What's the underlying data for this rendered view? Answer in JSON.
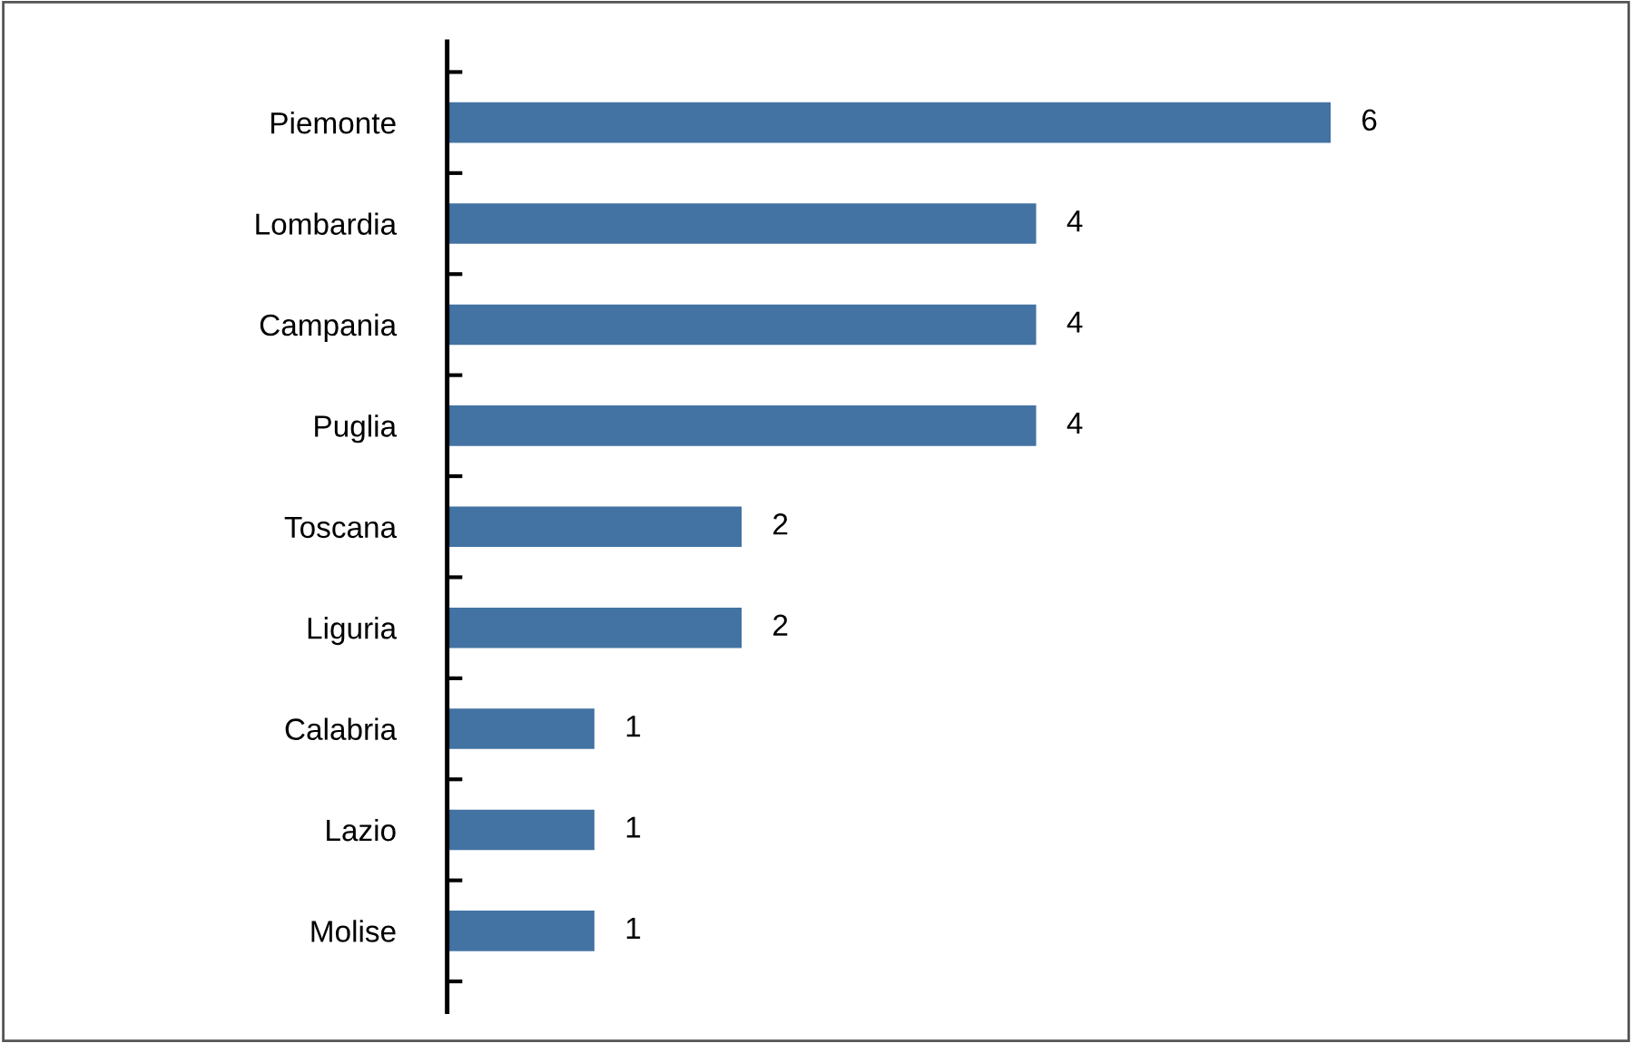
{
  "chart_data": {
    "type": "bar",
    "orientation": "horizontal",
    "categories": [
      "Piemonte",
      "Lombardia",
      "Campania",
      "Puglia",
      "Toscana",
      "Liguria",
      "Calabria",
      "Lazio",
      "Molise"
    ],
    "values": [
      6,
      4,
      4,
      4,
      2,
      2,
      1,
      1,
      1
    ],
    "color": "#4273a3",
    "data_labels": true,
    "grid": false,
    "legend": false
  }
}
